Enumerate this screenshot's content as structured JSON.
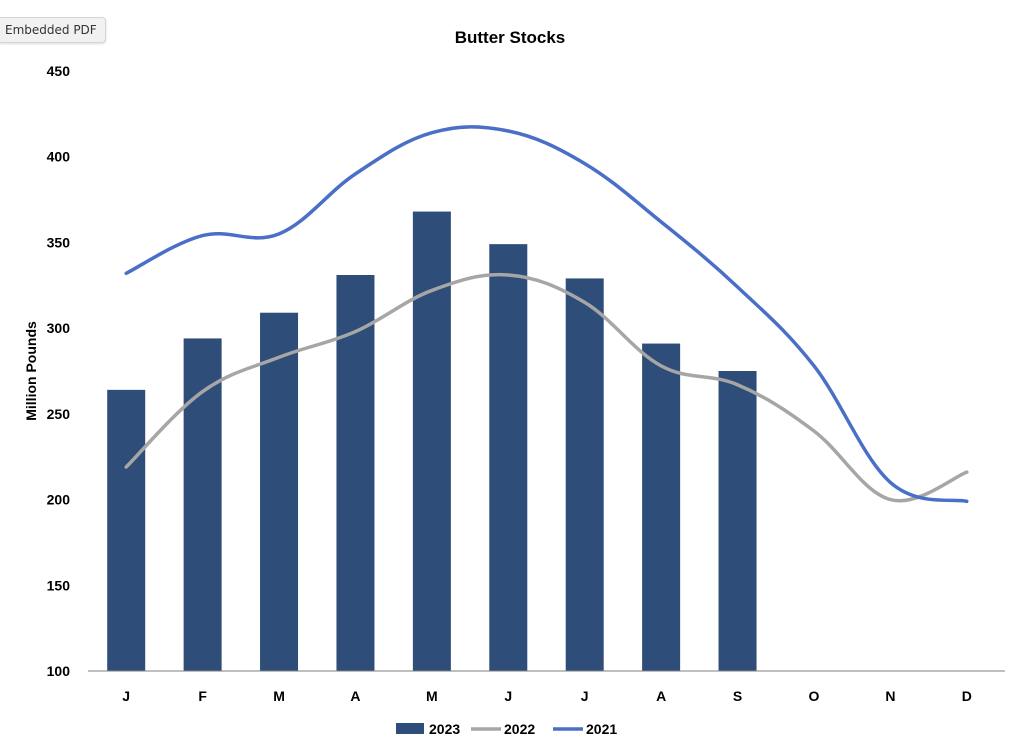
{
  "badge": {
    "label": "Embedded PDF"
  },
  "chart_data": {
    "type": "bar",
    "title": "Butter Stocks",
    "xlabel": "",
    "ylabel": "Million Pounds",
    "categories": [
      "J",
      "F",
      "M",
      "A",
      "M",
      "J",
      "J",
      "A",
      "S",
      "O",
      "N",
      "D"
    ],
    "ylim": [
      100,
      450
    ],
    "yticks": [
      100,
      150,
      200,
      250,
      300,
      350,
      400,
      450
    ],
    "grid": false,
    "legend_position": "bottom",
    "series": [
      {
        "name": "2023",
        "type": "bar",
        "color": "#2e4d78",
        "values": [
          264,
          294,
          309,
          331,
          368,
          349,
          329,
          291,
          275,
          null,
          null,
          null
        ]
      },
      {
        "name": "2022",
        "type": "line",
        "color": "#a6a6a6",
        "values": [
          219,
          263,
          283,
          298,
          322,
          331,
          315,
          278,
          267,
          240,
          200,
          216
        ]
      },
      {
        "name": "2021",
        "type": "line",
        "color": "#4a6fc7",
        "values": [
          332,
          354,
          355,
          390,
          414,
          415,
          396,
          362,
          324,
          278,
          210,
          199
        ]
      }
    ]
  }
}
